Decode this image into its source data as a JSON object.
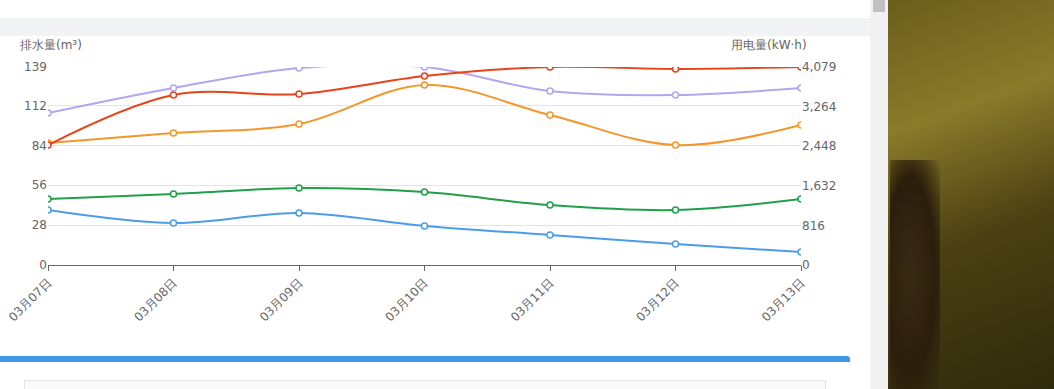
{
  "chart_data": {
    "type": "line",
    "ylabel": "排水量(m³)",
    "y2label": "用电量(kW·h)",
    "categories": [
      "03月07日",
      "03月08日",
      "03月09日",
      "03月10日",
      "03月11日",
      "03月12日",
      "03月13日"
    ],
    "ylim": [
      0,
      139
    ],
    "yticks": [
      0,
      28,
      56,
      84,
      112,
      139
    ],
    "y2lim": [
      0,
      4079
    ],
    "y2ticks": [
      0,
      816,
      {
        "value": 1632,
        "label": "1,632"
      },
      {
        "value": 2448,
        "label": "2,448"
      },
      {
        "value": 3264,
        "label": "3,264"
      },
      {
        "value": 4079,
        "label": "4,079"
      }
    ],
    "grid": true,
    "line_style": "smooth",
    "marker": "circle",
    "series": [
      {
        "color": "#b3a6ef",
        "axis": "y2",
        "values": [
          3131,
          3647,
          4058,
          4079,
          3584,
          3502,
          3647
        ]
      },
      {
        "color": "#e8431a",
        "axis": "y2",
        "values": [
          2471,
          3502,
          3522,
          3894,
          4079,
          4038,
          4079
        ]
      },
      {
        "color": "#f5962b",
        "values": [
          85.6,
          92.7,
          99,
          126.4,
          105.3,
          84.2,
          98.3
        ]
      },
      {
        "color": "#1fa149",
        "values": [
          46.3,
          49.8,
          54,
          51.2,
          42.1,
          38.6,
          46.3
        ]
      },
      {
        "color": "#4a9de8",
        "values": [
          38.6,
          29.5,
          36.5,
          27.4,
          21.1,
          14.7,
          9.1
        ]
      }
    ]
  }
}
